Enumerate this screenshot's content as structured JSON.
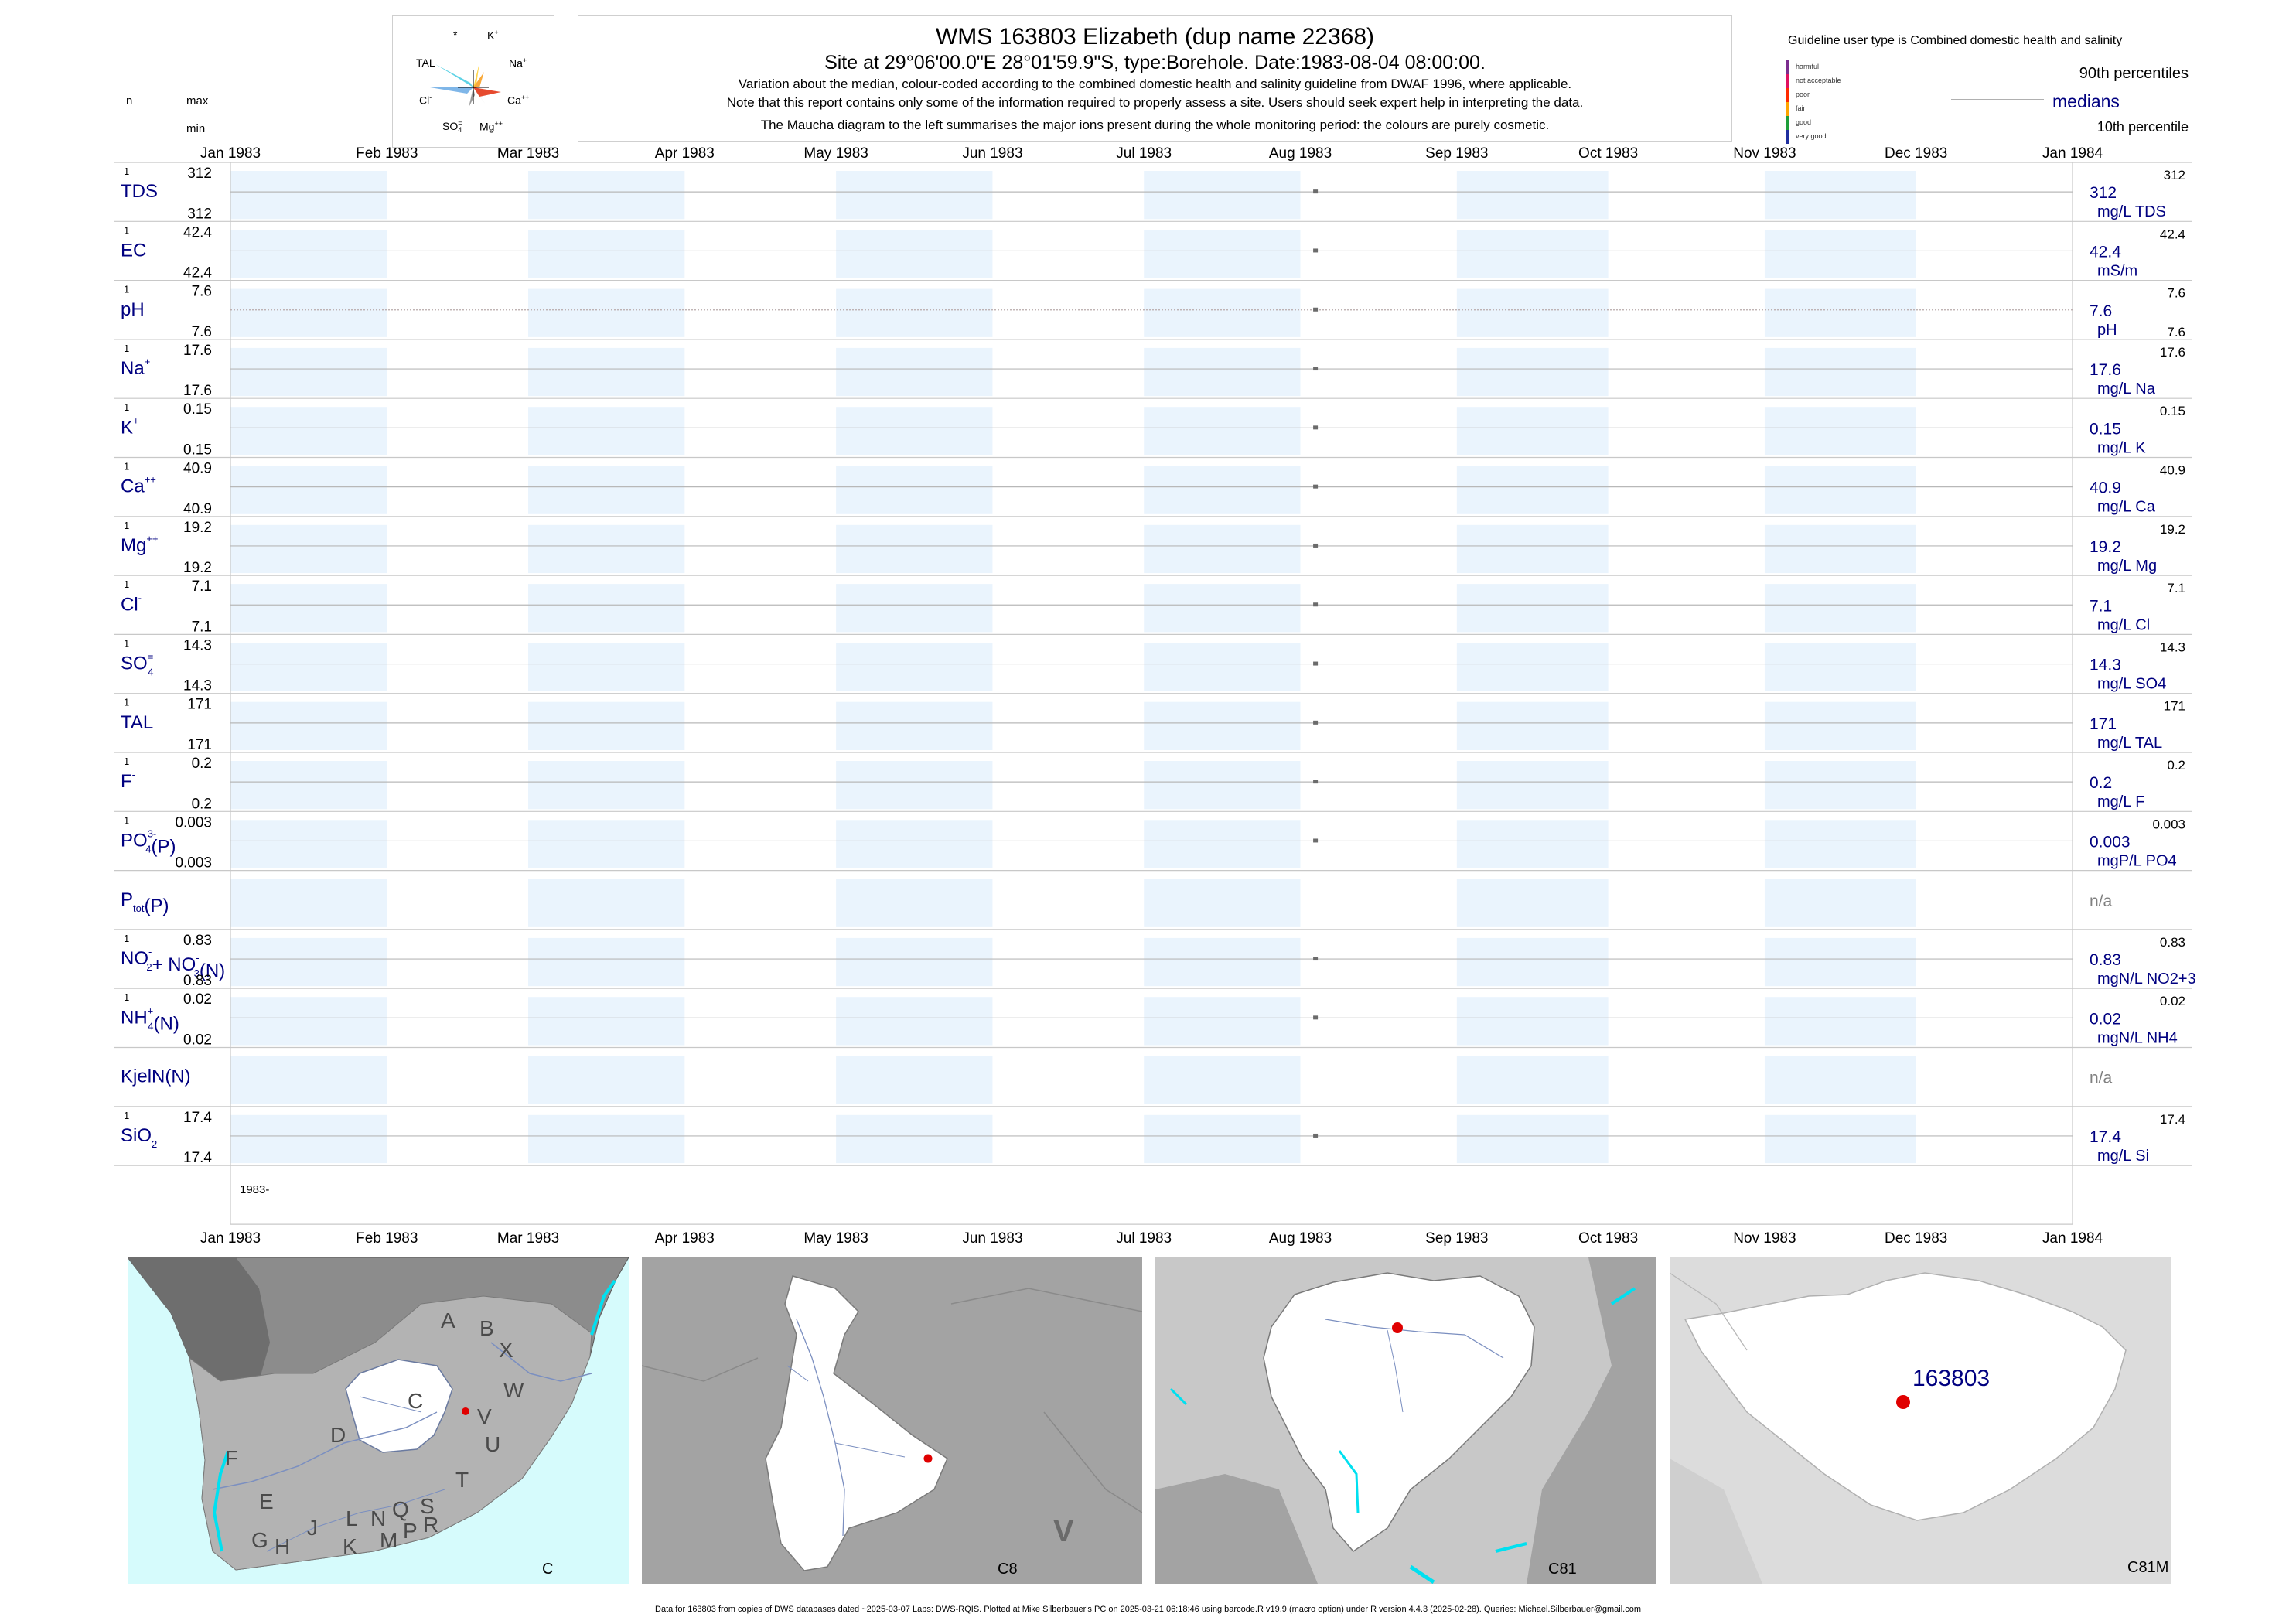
{
  "header": {
    "title": "WMS 163803  Elizabeth (dup name 22368)",
    "subtitle": "Site at 29°06'00.0\"E 28°01'59.9\"S, type:Borehole. Date:1983-08-04 08:00:00.",
    "note1": "Variation about the median,  colour-coded according to the combined domestic health and salinity guideline from DWAF 1996, where applicable.",
    "note2": "Note that this report contains only some of the information required to properly assess a site. Users should seek expert help in interpreting the data.",
    "note3": "The Maucha diagram to the left summarises the major ions present during the whole monitoring period: the colours are purely cosmetic."
  },
  "left_header": {
    "n": "n",
    "max": "max",
    "min": "min"
  },
  "maucha": {
    "labels": {
      "star": "*",
      "k": "K",
      "k_sup": "+",
      "tal": "TAL",
      "na": "Na",
      "na_sup": "+",
      "cl": "Cl",
      "cl_sup": "-",
      "ca": "Ca",
      "ca_sup": "++",
      "so4": "SO",
      "so4_sub": "4",
      "so4_sup": "=",
      "mg": "Mg",
      "mg_sup": "++"
    }
  },
  "legend": {
    "title": "Guideline user type is Combined domestic health and salinity",
    "categories": [
      {
        "label": "harmful",
        "color": "#7b2d8e"
      },
      {
        "label": "not acceptable",
        "color": "#e0115f"
      },
      {
        "label": "poor",
        "color": "#ff2a00"
      },
      {
        "label": "fair",
        "color": "#ffa500"
      },
      {
        "label": "good",
        "color": "#1e9e3a"
      },
      {
        "label": "very good",
        "color": "#1f2f9e"
      }
    ],
    "p90": "90th percentiles",
    "medians": "medians",
    "p10": "10th percentile"
  },
  "chart_data": {
    "type": "scatter",
    "x_axis": {
      "range": [
        "1983-01-01",
        "1984-01-01"
      ],
      "ticks": [
        "Jan 1983",
        "Feb 1983",
        "Mar 1983",
        "Apr 1983",
        "May 1983",
        "Jun 1983",
        "Jul 1983",
        "Aug 1983",
        "Sep 1983",
        "Oct 1983",
        "Nov 1983",
        "Dec 1983",
        "Jan 1984"
      ],
      "year_label": "1983-"
    },
    "sample_date": "1983-08-04",
    "panels": [
      {
        "label": "TDS",
        "n": "1",
        "max": "312",
        "min": "312",
        "median": "312",
        "unit": "mg/L TDS",
        "p90": "312",
        "p10": "",
        "value": 312,
        "has_data": true
      },
      {
        "label": "EC",
        "n": "1",
        "max": "42.4",
        "min": "42.4",
        "median": "42.4",
        "unit": "mS/m",
        "p90": "42.4",
        "p10": "",
        "value": 42.4,
        "has_data": true
      },
      {
        "label": "pH",
        "n": "1",
        "max": "7.6",
        "min": "7.6",
        "median": "7.6",
        "unit": "pH",
        "p90": "7.6",
        "p10": "7.6",
        "value": 7.6,
        "has_data": true
      },
      {
        "label": "Na",
        "sup": "+",
        "n": "1",
        "max": "17.6",
        "min": "17.6",
        "median": "17.6",
        "unit": "mg/L Na",
        "p90": "17.6",
        "p10": "",
        "value": 17.6,
        "has_data": true
      },
      {
        "label": "K",
        "sup": "+",
        "n": "1",
        "max": "0.15",
        "min": "0.15",
        "median": "0.15",
        "unit": "mg/L K",
        "p90": "0.15",
        "p10": "",
        "value": 0.15,
        "has_data": true
      },
      {
        "label": "Ca",
        "sup": "++",
        "n": "1",
        "max": "40.9",
        "min": "40.9",
        "median": "40.9",
        "unit": "mg/L Ca",
        "p90": "40.9",
        "p10": "",
        "value": 40.9,
        "has_data": true
      },
      {
        "label": "Mg",
        "sup": "++",
        "n": "1",
        "max": "19.2",
        "min": "19.2",
        "median": "19.2",
        "unit": "mg/L Mg",
        "p90": "19.2",
        "p10": "",
        "value": 19.2,
        "has_data": true
      },
      {
        "label": "Cl",
        "sup": "-",
        "n": "1",
        "max": "7.1",
        "min": "7.1",
        "median": "7.1",
        "unit": "mg/L Cl",
        "p90": "7.1",
        "p10": "",
        "value": 7.1,
        "has_data": true
      },
      {
        "label": "SO",
        "sub": "4",
        "sup": "=",
        "n": "1",
        "max": "14.3",
        "min": "14.3",
        "median": "14.3",
        "unit": "mg/L SO4",
        "p90": "14.3",
        "p10": "",
        "value": 14.3,
        "has_data": true
      },
      {
        "label": "TAL",
        "n": "1",
        "max": "171",
        "min": "171",
        "median": "171",
        "unit": "mg/L TAL",
        "p90": "171",
        "p10": "",
        "value": 171,
        "has_data": true
      },
      {
        "label": "F",
        "sup": "-",
        "n": "1",
        "max": "0.2",
        "min": "0.2",
        "median": "0.2",
        "unit": "mg/L F",
        "p90": "0.2",
        "p10": "",
        "value": 0.2,
        "has_data": true
      },
      {
        "label": "PO",
        "sub": "4",
        "sup": "3-",
        "tail": "(P)",
        "n": "1",
        "max": "0.003",
        "min": "0.003",
        "median": "0.003",
        "unit": "mgP/L PO4",
        "p90": "0.003",
        "p10": "",
        "value": 0.003,
        "has_data": true
      },
      {
        "label": "P",
        "sub": "tot",
        "tail": "(P)",
        "n": "",
        "max": "",
        "min": "",
        "median": "n/a",
        "unit": "",
        "p90": "",
        "p10": "",
        "value": null,
        "has_data": false
      },
      {
        "label": "NO",
        "sub": "2",
        "sup": "-",
        "tail": "+ NO",
        "sub2": "3",
        "sup2": "-",
        "tail2": "(N)",
        "n": "1",
        "max": "0.83",
        "min": "0.83",
        "median": "0.83",
        "unit": "mgN/L NO2+3",
        "p90": "0.83",
        "p10": "",
        "value": 0.83,
        "has_data": true
      },
      {
        "label": "NH",
        "sub": "4",
        "sup": "+",
        "tail": "(N)",
        "n": "1",
        "max": "0.02",
        "min": "0.02",
        "median": "0.02",
        "unit": "mgN/L NH4",
        "p90": "0.02",
        "p10": "",
        "value": 0.02,
        "has_data": true
      },
      {
        "label": "KjelN(N)",
        "n": "",
        "max": "",
        "min": "",
        "median": "n/a",
        "unit": "",
        "p90": "",
        "p10": "",
        "value": null,
        "has_data": false
      },
      {
        "label": "SiO",
        "sub": "2",
        "n": "1",
        "max": "17.4",
        "min": "17.4",
        "median": "17.4",
        "unit": "mg/L Si",
        "p90": "17.4",
        "p10": "",
        "value": 17.4,
        "has_data": true
      }
    ]
  },
  "maps": {
    "panel1_label": "C",
    "panel2_label": "C8",
    "panel2_region": "V",
    "panel3_label": "C81",
    "panel4_label": "C81M",
    "site_label": "163803",
    "region_letters": [
      "A",
      "B",
      "X",
      "W",
      "C",
      "V",
      "U",
      "D",
      "T",
      "F",
      "E",
      "J",
      "L",
      "N",
      "Q",
      "S",
      "G",
      "H",
      "K",
      "M",
      "P",
      "R"
    ]
  },
  "footer": "Data for 163803 from copies of DWS databases dated ~2025-03-07 Labs: DWS-RQIS. Plotted at Mike Silberbauer's PC on 2025-03-21 06:18:46 using barcode.R v19.9 (macro option) under R version 4.4.3 (2025-02-28). Queries: Michael.Silberbauer@gmail.com"
}
